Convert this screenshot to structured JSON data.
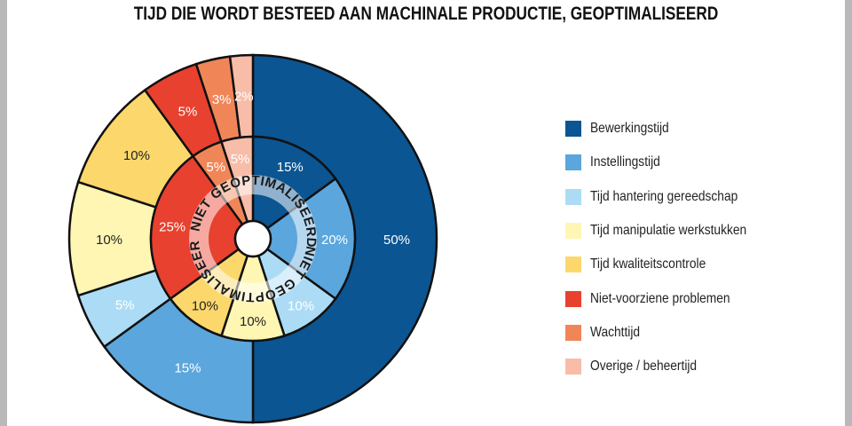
{
  "chart_data": {
    "type": "pie",
    "subtype": "nested-donut",
    "title": "TIJD DIE WORDT BESTEED AAN MACHINALE PRODUCTIE, GEOPTIMALISEERD",
    "categories": [
      "Bewerkingstijd",
      "Instellingstijd",
      "Tijd hantering gereedschap",
      "Tijd manipulatie werkstukken",
      "Tijd kwaliteitscontrole",
      "Niet-voorziene problemen",
      "Wachttijd",
      "Overige / beheertijd"
    ],
    "colors": [
      "#0b5592",
      "#5ba6dc",
      "#acdcf5",
      "#fff6b4",
      "#fcd86c",
      "#e8412f",
      "#f08658",
      "#f8bda9"
    ],
    "series": [
      {
        "name": "GEOPTIMALISEERD",
        "ring": "outer",
        "values": [
          50,
          15,
          5,
          10,
          10,
          5,
          3,
          2
        ],
        "labels": [
          "50%",
          "15%",
          "5%",
          "10%",
          "10%",
          "5%",
          "3%",
          "2%"
        ]
      },
      {
        "name": "NIET GEOPTIMALISEERD",
        "ring": "inner",
        "values": [
          15,
          20,
          10,
          10,
          10,
          25,
          5,
          5
        ],
        "labels": [
          "15%",
          "20%",
          "10%",
          "10%",
          "10%",
          "25%",
          "5%",
          "5%"
        ]
      }
    ],
    "inner_ring_caption": "NIET GEOPTIMALISEERD",
    "legend_position": "right"
  }
}
